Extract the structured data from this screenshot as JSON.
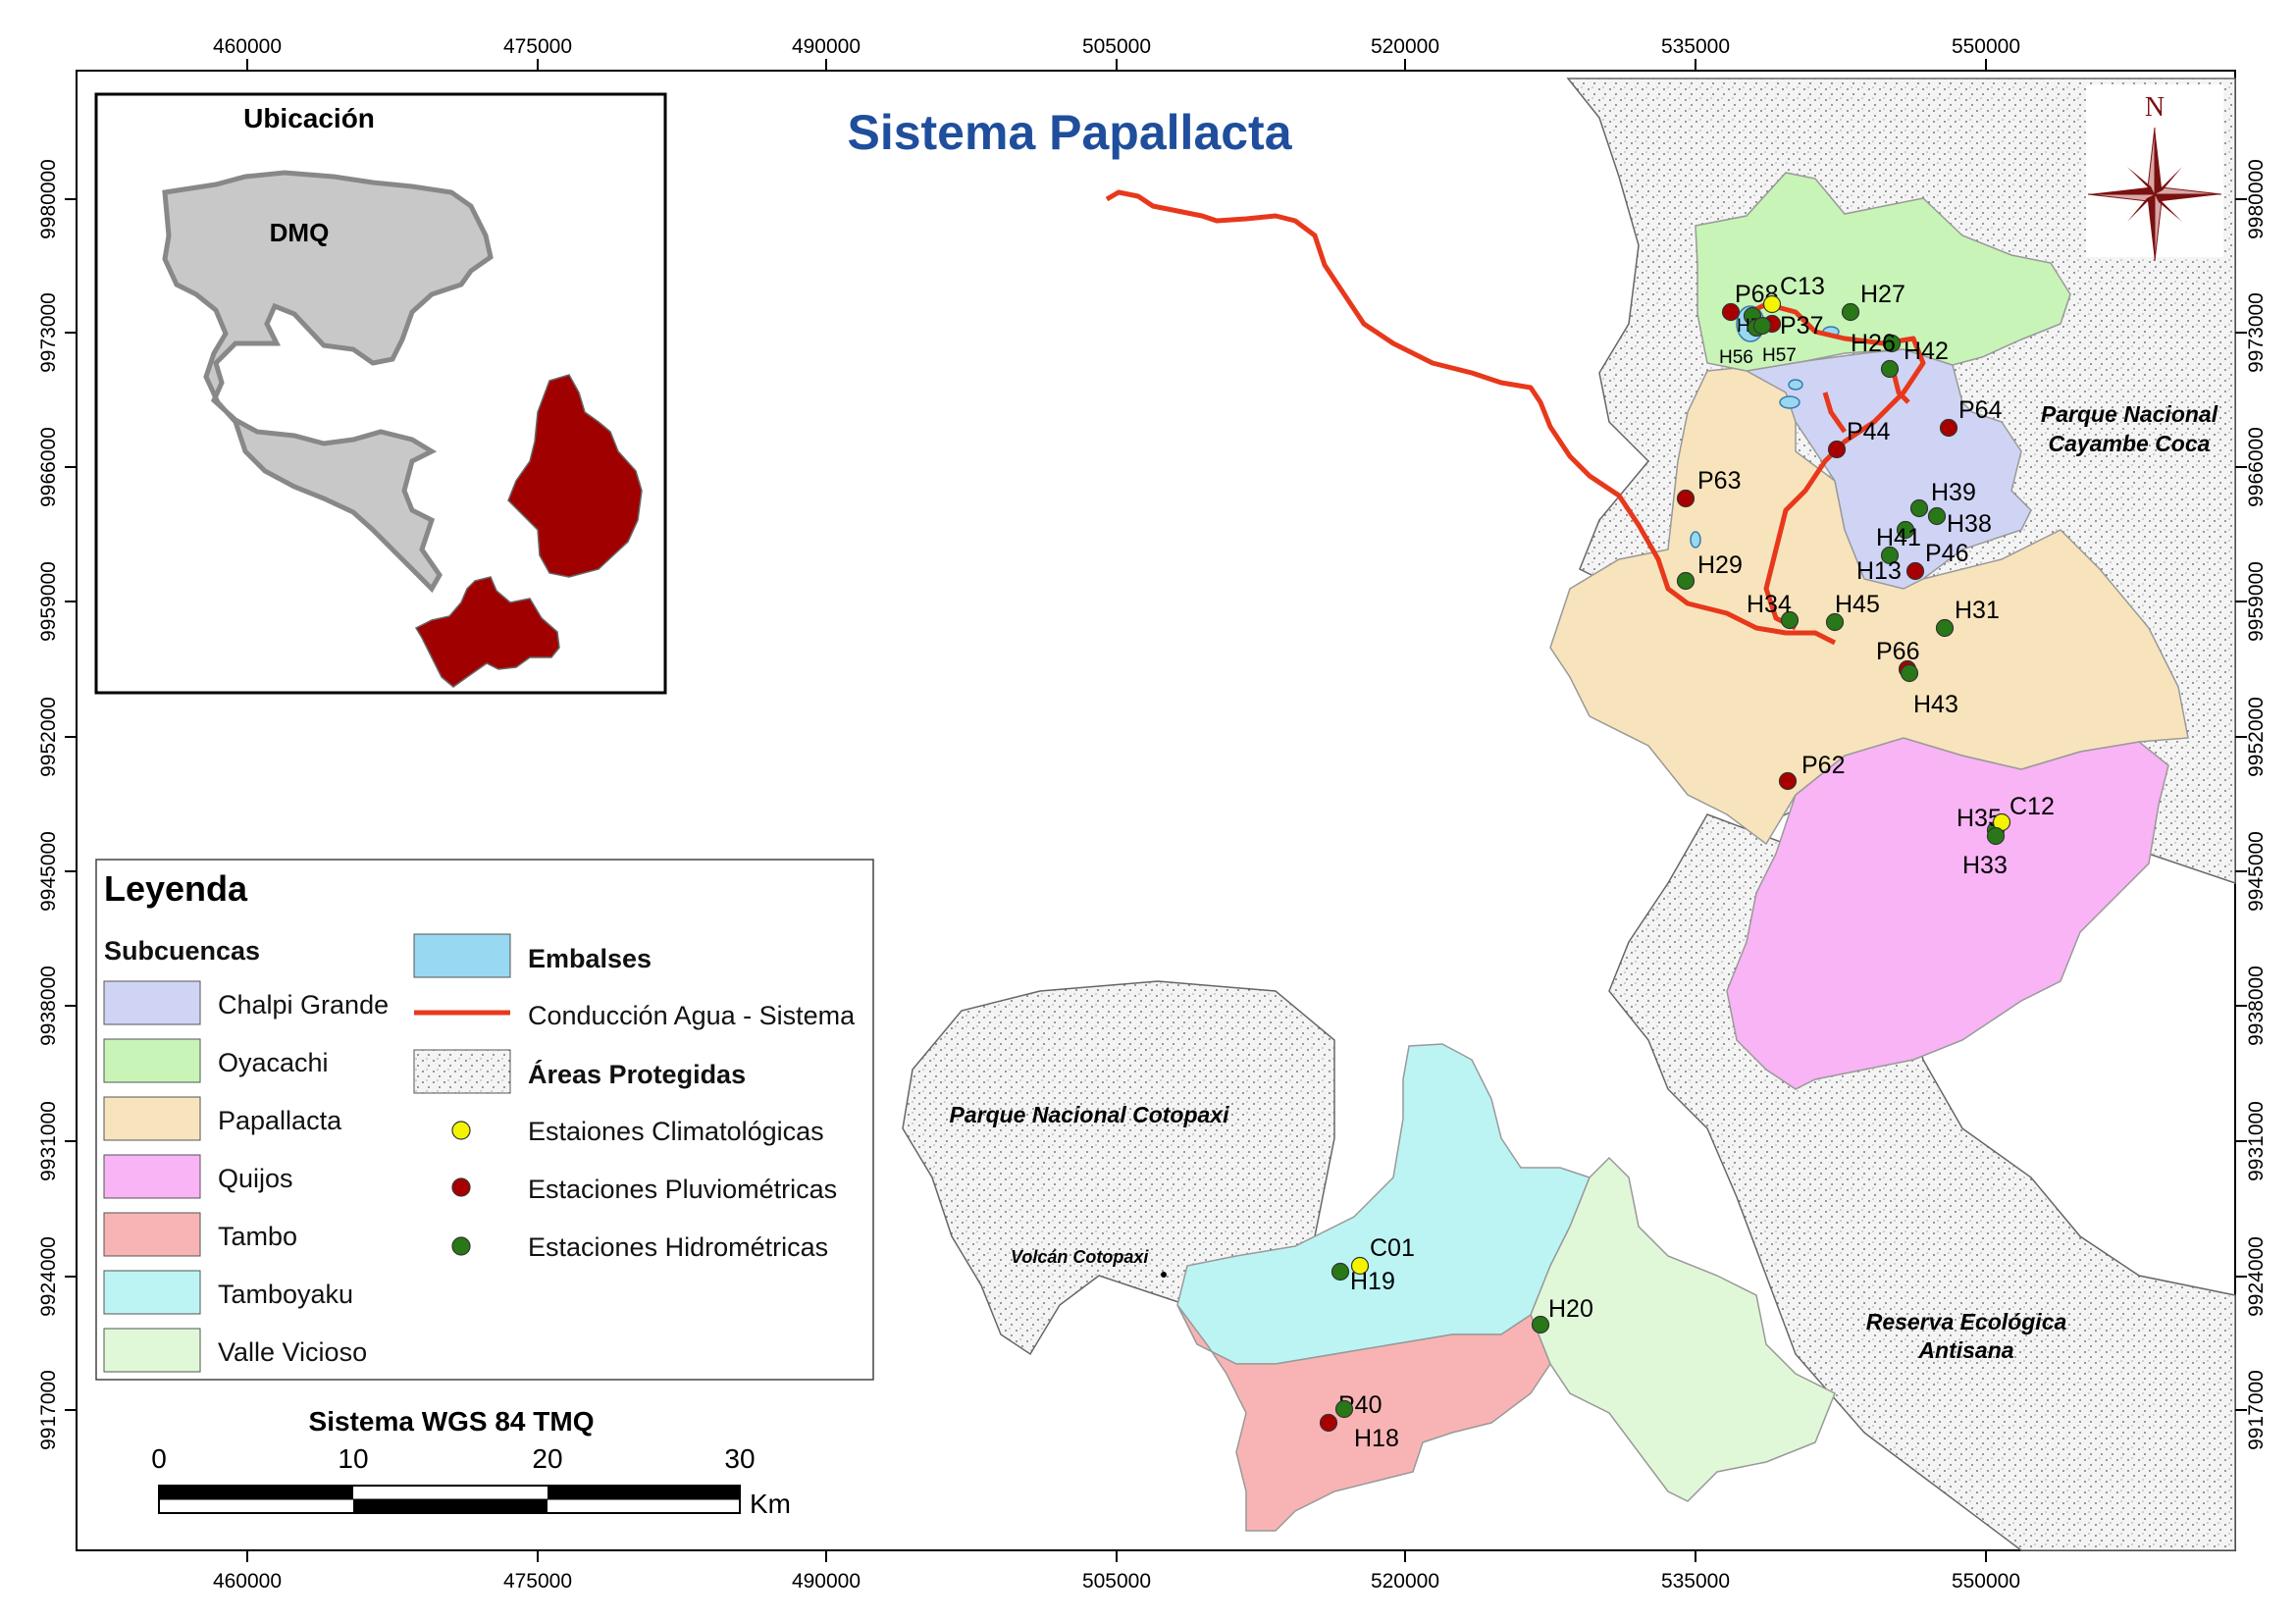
{
  "map": {
    "title": "Sistema Papallacta",
    "title_color": "#1f4e9c",
    "x_ticks": [
      "460000",
      "475000",
      "490000",
      "505000",
      "520000",
      "535000",
      "550000"
    ],
    "y_ticks": [
      "9980000",
      "9973000",
      "9966000",
      "9959000",
      "9952000",
      "9945000",
      "9938000",
      "9931000",
      "9924000",
      "9917000"
    ],
    "north_label": "N"
  },
  "inset": {
    "title": "Ubicación",
    "region_label": "DMQ",
    "region_color": "#c8c8c8",
    "highlight_color": "#a00000"
  },
  "legend": {
    "title": "Leyenda",
    "subcuencas_heading": "Subcuencas",
    "subcuencas": [
      {
        "label": "Chalpi Grande",
        "color": "#d0d4f4"
      },
      {
        "label": "Oyacachi",
        "color": "#c8f4b8"
      },
      {
        "label": "Papallacta",
        "color": "#f8e4bc"
      },
      {
        "label": "Quijos",
        "color": "#f8b4f4"
      },
      {
        "label": "Tambo",
        "color": "#f8b4b4"
      },
      {
        "label": "Tamboyaku",
        "color": "#bcf4f4"
      },
      {
        "label": "Valle Vicioso",
        "color": "#e0f8d8"
      }
    ],
    "embalses": "Embalses",
    "embalses_color": "#98d8f0",
    "conduccion": "Conducción Agua - Sistema",
    "conduccion_color": "#e8381c",
    "areas": "Áreas Protegidas",
    "climatologicas": "Estaiones Climatológicas",
    "climatologicas_color": "#f4f400",
    "pluviometricas": "Estaciones Pluviométricas",
    "pluviometricas_color": "#a80000",
    "hidrometricas": "Estaciones Hidrométricas",
    "hidrometricas_color": "#287818"
  },
  "scale": {
    "title": "Sistema WGS 84 TMQ",
    "ticks": [
      "0",
      "10",
      "20",
      "30"
    ],
    "unit": "Km"
  },
  "protected_areas": {
    "cayambe_1": "Parque Nacional",
    "cayambe_2": "Cayambe Coca",
    "cotopaxi": "Parque Nacional Cotopaxi",
    "volcan": "Volcán Cotopaxi",
    "antisana_1": "Reserva Ecológica",
    "antisana_2": "Antisana"
  },
  "stations": [
    {
      "label": "P68",
      "type": "pluviometricas"
    },
    {
      "label": "C13",
      "type": "climatologicas"
    },
    {
      "label": "P37",
      "type": "pluviometricas"
    },
    {
      "label": "H58",
      "type": "hidrometricas"
    },
    {
      "label": "H56",
      "type": "hidrometricas"
    },
    {
      "label": "H57",
      "type": "hidrometricas"
    },
    {
      "label": "H27",
      "type": "hidrometricas"
    },
    {
      "label": "H26",
      "type": "hidrometricas"
    },
    {
      "label": "H42",
      "type": "hidrometricas"
    },
    {
      "label": "P64",
      "type": "pluviometricas"
    },
    {
      "label": "P44",
      "type": "pluviometricas"
    },
    {
      "label": "P63",
      "type": "pluviometricas"
    },
    {
      "label": "H39",
      "type": "hidrometricas"
    },
    {
      "label": "H38",
      "type": "hidrometricas"
    },
    {
      "label": "H41",
      "type": "hidrometricas"
    },
    {
      "label": "H13",
      "type": "hidrometricas"
    },
    {
      "label": "P46",
      "type": "pluviometricas"
    },
    {
      "label": "H29",
      "type": "hidrometricas"
    },
    {
      "label": "H34",
      "type": "hidrometricas"
    },
    {
      "label": "H45",
      "type": "hidrometricas"
    },
    {
      "label": "H31",
      "type": "hidrometricas"
    },
    {
      "label": "P66",
      "type": "pluviometricas"
    },
    {
      "label": "H43",
      "type": "hidrometricas"
    },
    {
      "label": "P62",
      "type": "pluviometricas"
    },
    {
      "label": "H35",
      "type": "hidrometricas"
    },
    {
      "label": "C12",
      "type": "climatologicas"
    },
    {
      "label": "H33",
      "type": "hidrometricas"
    },
    {
      "label": "C01",
      "type": "climatologicas"
    },
    {
      "label": "H19",
      "type": "hidrometricas"
    },
    {
      "label": "H20",
      "type": "hidrometricas"
    },
    {
      "label": "P40",
      "type": "pluviometricas"
    },
    {
      "label": "H18",
      "type": "hidrometricas"
    }
  ]
}
